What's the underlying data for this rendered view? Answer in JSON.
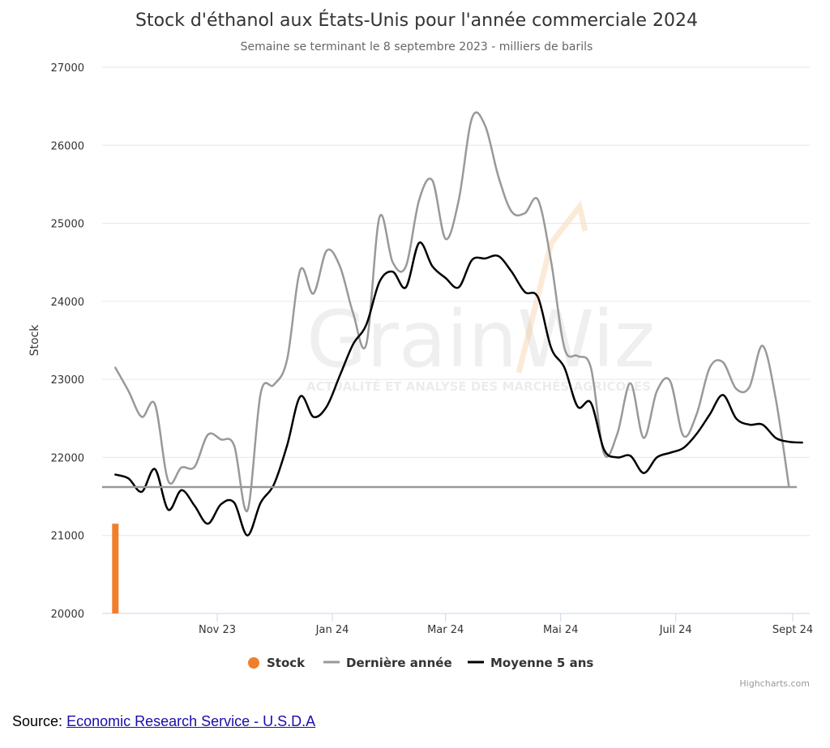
{
  "source": {
    "label": "Source:",
    "link_text": "Economic Research Service - U.S.D.A"
  },
  "watermark": {
    "brand_a": "Grain",
    "brand_b": "Wiz",
    "tagline": "ACTUALITÉ ET ANALYSE DES MARCHÉS AGRICOLES"
  },
  "credits": "Highcharts.com",
  "colors": {
    "stock": "#f07f2c",
    "last_year": "#999999",
    "avg5": "#000000",
    "grid": "#e6e6e6",
    "axis": "#ccd6eb",
    "ref_line": "#999999"
  },
  "chart_data": {
    "type": "line",
    "title": "Stock d'éthanol aux États-Unis pour l'année commerciale 2024",
    "subtitle": "Semaine se terminant le 8 septembre 2023 - milliers de barils",
    "ylabel": "Stock",
    "xlabel": "",
    "ylim": [
      20000,
      27000
    ],
    "yticks": [
      20000,
      21000,
      22000,
      23000,
      24000,
      25000,
      26000,
      27000
    ],
    "xlim": [
      "2023-09-01",
      "2024-09-10"
    ],
    "xticks": [
      {
        "label": "Nov 23",
        "date": "2023-11-01"
      },
      {
        "label": "Jan 24",
        "date": "2024-01-01"
      },
      {
        "label": "Mar 24",
        "date": "2024-03-01"
      },
      {
        "label": "Mai 24",
        "date": "2024-05-01"
      },
      {
        "label": "Juil 24",
        "date": "2024-07-01"
      },
      {
        "label": "Sept 24",
        "date": "2024-09-01"
      }
    ],
    "grid": true,
    "legend_position": "bottom",
    "reference_line": 21620,
    "series": [
      {
        "name": "Stock",
        "kind": "column",
        "points": [
          [
            "2023-09-08",
            21150
          ]
        ]
      },
      {
        "name": "Dernière année",
        "kind": "line",
        "points": [
          [
            "2023-09-08",
            23150
          ],
          [
            "2023-09-15",
            22850
          ],
          [
            "2023-09-22",
            22520
          ],
          [
            "2023-09-29",
            22680
          ],
          [
            "2023-10-06",
            21700
          ],
          [
            "2023-10-13",
            21870
          ],
          [
            "2023-10-20",
            21880
          ],
          [
            "2023-10-27",
            22290
          ],
          [
            "2023-11-03",
            22230
          ],
          [
            "2023-11-10",
            22150
          ],
          [
            "2023-11-17",
            21320
          ],
          [
            "2023-11-24",
            22820
          ],
          [
            "2023-12-01",
            22930
          ],
          [
            "2023-12-08",
            23250
          ],
          [
            "2023-12-15",
            24400
          ],
          [
            "2023-12-22",
            24100
          ],
          [
            "2023-12-29",
            24650
          ],
          [
            "2024-01-05",
            24450
          ],
          [
            "2024-01-12",
            23850
          ],
          [
            "2024-01-19",
            23450
          ],
          [
            "2024-01-26",
            25080
          ],
          [
            "2024-02-02",
            24500
          ],
          [
            "2024-02-09",
            24450
          ],
          [
            "2024-02-16",
            25300
          ],
          [
            "2024-02-23",
            25550
          ],
          [
            "2024-03-01",
            24800
          ],
          [
            "2024-03-08",
            25300
          ],
          [
            "2024-03-15",
            26350
          ],
          [
            "2024-03-22",
            26250
          ],
          [
            "2024-03-29",
            25600
          ],
          [
            "2024-04-05",
            25150
          ],
          [
            "2024-04-12",
            25130
          ],
          [
            "2024-04-19",
            25300
          ],
          [
            "2024-04-26",
            24500
          ],
          [
            "2024-05-03",
            23400
          ],
          [
            "2024-05-10",
            23300
          ],
          [
            "2024-05-17",
            23150
          ],
          [
            "2024-05-24",
            22050
          ],
          [
            "2024-05-31",
            22300
          ],
          [
            "2024-06-07",
            22950
          ],
          [
            "2024-06-14",
            22250
          ],
          [
            "2024-06-21",
            22850
          ],
          [
            "2024-06-28",
            22980
          ],
          [
            "2024-07-05",
            22280
          ],
          [
            "2024-07-12",
            22550
          ],
          [
            "2024-07-19",
            23150
          ],
          [
            "2024-07-26",
            23220
          ],
          [
            "2024-08-02",
            22880
          ],
          [
            "2024-08-09",
            22900
          ],
          [
            "2024-08-16",
            23430
          ],
          [
            "2024-08-23",
            22750
          ],
          [
            "2024-08-30",
            21620
          ]
        ]
      },
      {
        "name": "Moyenne 5 ans",
        "kind": "line",
        "points": [
          [
            "2023-09-08",
            21780
          ],
          [
            "2023-09-15",
            21730
          ],
          [
            "2023-09-22",
            21560
          ],
          [
            "2023-09-29",
            21850
          ],
          [
            "2023-10-06",
            21330
          ],
          [
            "2023-10-13",
            21580
          ],
          [
            "2023-10-20",
            21380
          ],
          [
            "2023-10-27",
            21150
          ],
          [
            "2023-11-03",
            21400
          ],
          [
            "2023-11-10",
            21420
          ],
          [
            "2023-11-17",
            21000
          ],
          [
            "2023-11-24",
            21420
          ],
          [
            "2023-12-01",
            21650
          ],
          [
            "2023-12-08",
            22150
          ],
          [
            "2023-12-15",
            22780
          ],
          [
            "2023-12-22",
            22520
          ],
          [
            "2023-12-29",
            22650
          ],
          [
            "2024-01-05",
            23050
          ],
          [
            "2024-01-12",
            23450
          ],
          [
            "2024-01-19",
            23700
          ],
          [
            "2024-01-26",
            24250
          ],
          [
            "2024-02-02",
            24380
          ],
          [
            "2024-02-09",
            24180
          ],
          [
            "2024-02-16",
            24750
          ],
          [
            "2024-02-23",
            24450
          ],
          [
            "2024-03-01",
            24300
          ],
          [
            "2024-03-08",
            24180
          ],
          [
            "2024-03-15",
            24530
          ],
          [
            "2024-03-22",
            24550
          ],
          [
            "2024-03-29",
            24580
          ],
          [
            "2024-04-05",
            24380
          ],
          [
            "2024-04-12",
            24120
          ],
          [
            "2024-04-19",
            24050
          ],
          [
            "2024-04-26",
            23400
          ],
          [
            "2024-05-03",
            23150
          ],
          [
            "2024-05-10",
            22650
          ],
          [
            "2024-05-17",
            22700
          ],
          [
            "2024-05-24",
            22100
          ],
          [
            "2024-05-31",
            22000
          ],
          [
            "2024-06-07",
            22020
          ],
          [
            "2024-06-14",
            21800
          ],
          [
            "2024-06-21",
            22000
          ],
          [
            "2024-06-28",
            22060
          ],
          [
            "2024-07-05",
            22120
          ],
          [
            "2024-07-12",
            22300
          ],
          [
            "2024-07-19",
            22550
          ],
          [
            "2024-07-26",
            22800
          ],
          [
            "2024-08-02",
            22500
          ],
          [
            "2024-08-09",
            22420
          ],
          [
            "2024-08-16",
            22420
          ],
          [
            "2024-08-23",
            22250
          ],
          [
            "2024-08-30",
            22200
          ],
          [
            "2024-09-06",
            22190
          ]
        ]
      }
    ]
  }
}
